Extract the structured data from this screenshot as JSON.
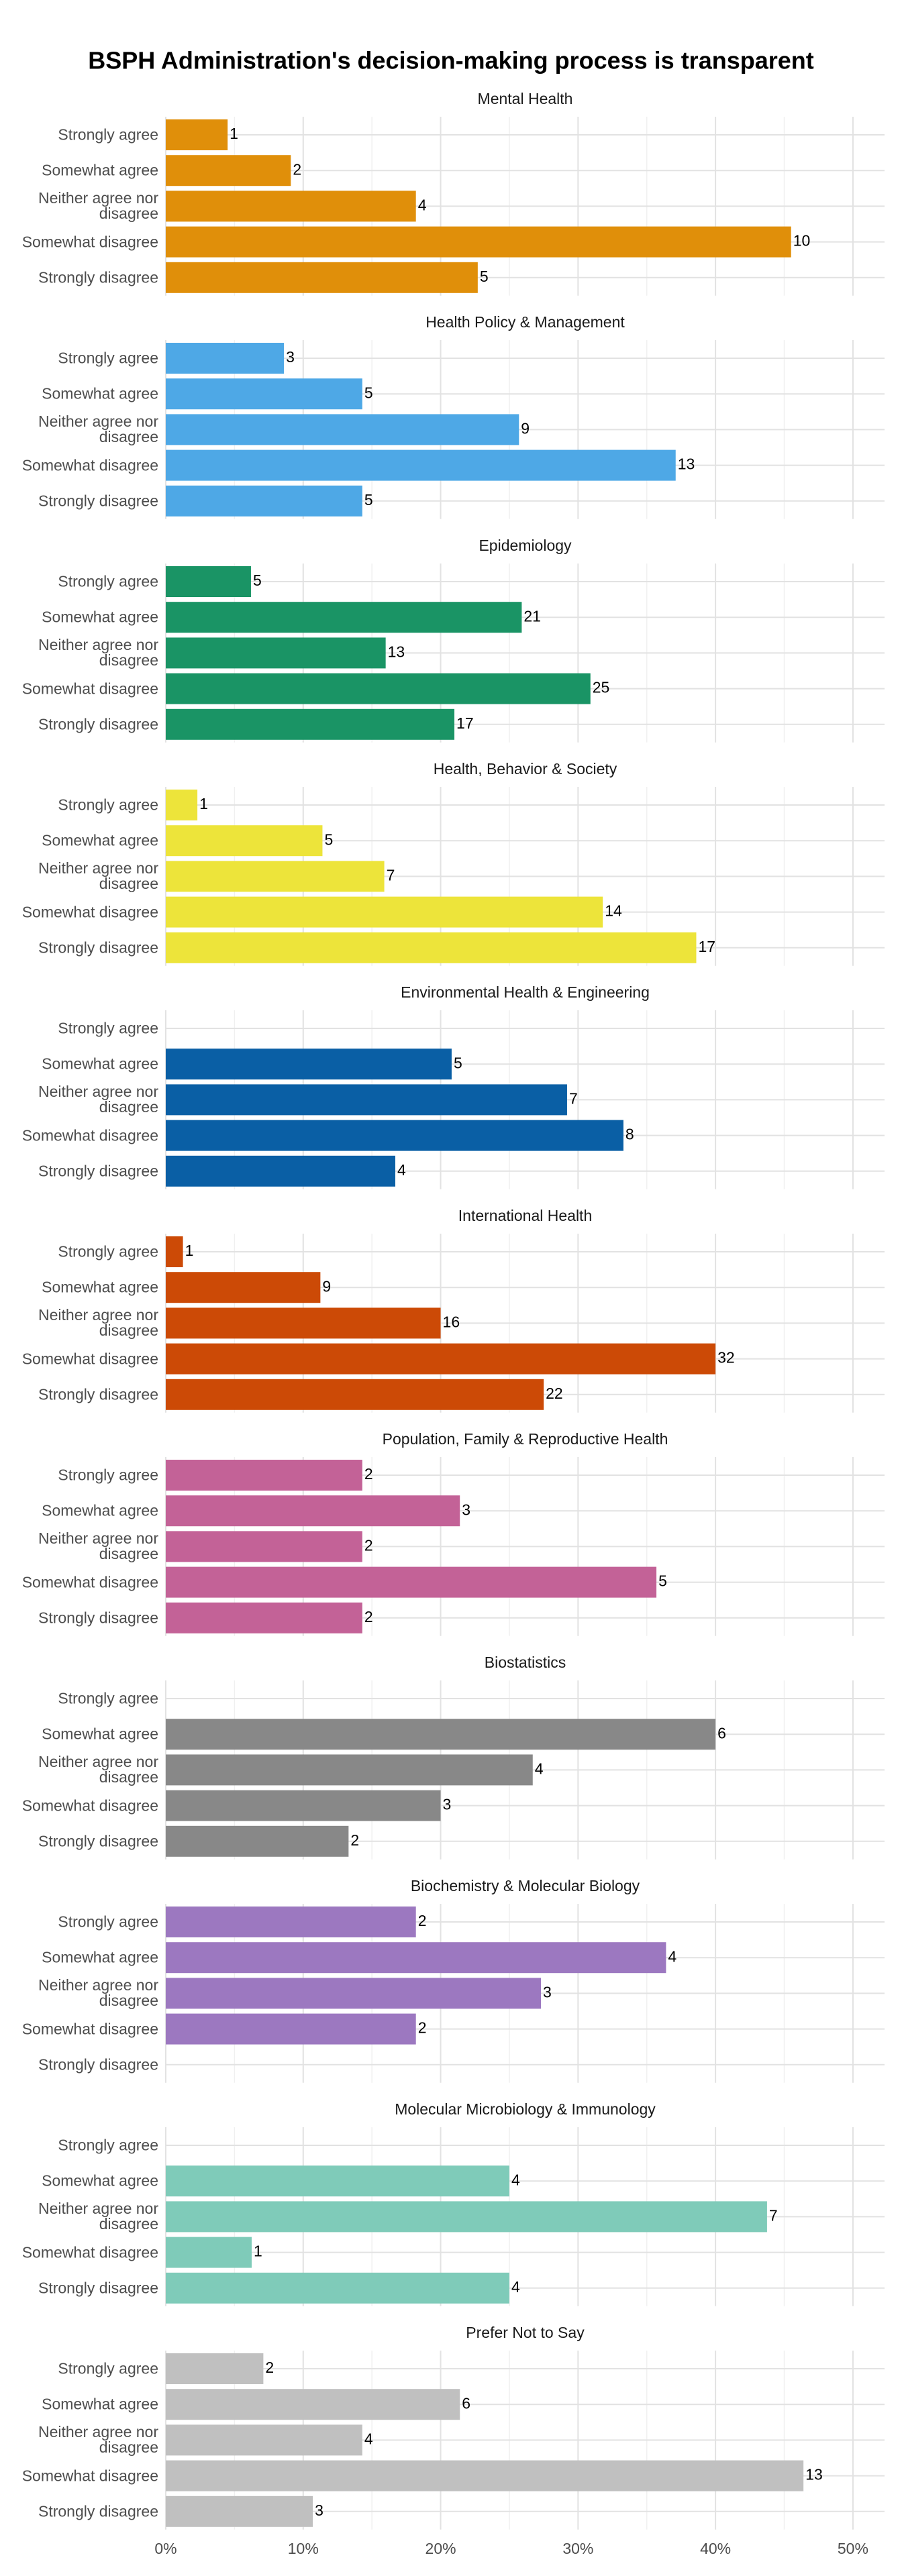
{
  "title": "BSPH Administration's decision-making process is transparent",
  "categories": [
    "Strongly agree",
    "Somewhat agree",
    "Neither agree nor disagree",
    "Somewhat disagree",
    "Strongly disagree"
  ],
  "xlim": [
    0,
    52.3
  ],
  "xticks": [
    {
      "value": 0,
      "label": "0%"
    },
    {
      "value": 10,
      "label": "10%"
    },
    {
      "value": 20,
      "label": "20%"
    },
    {
      "value": 30,
      "label": "30%"
    },
    {
      "value": 40,
      "label": "40%"
    },
    {
      "value": 50,
      "label": "50%"
    }
  ],
  "grid": true,
  "chart_data": [
    {
      "type": "bar",
      "title": "Mental Health",
      "color": "#e08f0a",
      "values": [
        4.5,
        9.1,
        18.2,
        45.5,
        22.7
      ],
      "counts": [
        1,
        2,
        4,
        10,
        5
      ]
    },
    {
      "type": "bar",
      "title": "Health Policy & Management",
      "color": "#4ea8e6",
      "values": [
        8.6,
        14.3,
        25.7,
        37.1,
        14.3
      ],
      "counts": [
        3,
        5,
        9,
        13,
        5
      ]
    },
    {
      "type": "bar",
      "title": "Epidemiology",
      "color": "#1a9465",
      "values": [
        6.2,
        25.9,
        16.0,
        30.9,
        21.0
      ],
      "counts": [
        5,
        21,
        13,
        25,
        17
      ]
    },
    {
      "type": "bar",
      "title": "Health, Behavior & Society",
      "color": "#ede43a",
      "values": [
        2.3,
        11.4,
        15.9,
        31.8,
        38.6
      ],
      "counts": [
        1,
        5,
        7,
        14,
        17
      ]
    },
    {
      "type": "bar",
      "title": "Environmental Health & Engineering",
      "color": "#0a5fa5",
      "values": [
        null,
        20.8,
        29.2,
        33.3,
        16.7
      ],
      "counts": [
        null,
        5,
        7,
        8,
        4
      ]
    },
    {
      "type": "bar",
      "title": "International Health",
      "color": "#cc4a06",
      "values": [
        1.25,
        11.25,
        20.0,
        40.0,
        27.5
      ],
      "counts": [
        1,
        9,
        16,
        32,
        22
      ]
    },
    {
      "type": "bar",
      "title": "Population, Family & Reproductive Health",
      "color": "#c36297",
      "values": [
        14.3,
        21.4,
        14.3,
        35.7,
        14.3
      ],
      "counts": [
        2,
        3,
        2,
        5,
        2
      ]
    },
    {
      "type": "bar",
      "title": "Biostatistics",
      "color": "#888888",
      "values": [
        null,
        40.0,
        26.7,
        20.0,
        13.3
      ],
      "counts": [
        null,
        6,
        4,
        3,
        2
      ]
    },
    {
      "type": "bar",
      "title": "Biochemistry & Molecular Biology",
      "color": "#9c78c0",
      "values": [
        18.2,
        36.4,
        27.3,
        18.2,
        null
      ],
      "counts": [
        2,
        4,
        3,
        2,
        null
      ]
    },
    {
      "type": "bar",
      "title": "Molecular Microbiology & Immunology",
      "color": "#7fcbb9",
      "values": [
        null,
        25.0,
        43.75,
        6.25,
        25.0
      ],
      "counts": [
        null,
        4,
        7,
        1,
        4
      ]
    },
    {
      "type": "bar",
      "title": "Prefer Not to Say",
      "color": "#c0c0c0",
      "values": [
        7.1,
        21.4,
        14.3,
        46.4,
        10.7
      ],
      "counts": [
        2,
        6,
        4,
        13,
        3
      ]
    }
  ]
}
